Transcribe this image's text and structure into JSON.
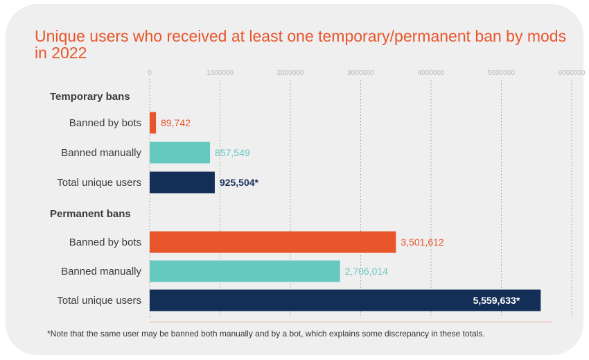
{
  "title": "Unique users who received at least one temporary/permanent ban by mods in 2022",
  "footnote": "*Note that the same user may be banned both manually and by a bot, which explains some discrepancy in these totals.",
  "colors": {
    "bots": "#e8552b",
    "manual": "#66c9c0",
    "total": "#142f57",
    "title": "#e8552b",
    "axis": "#e6b8a8"
  },
  "chart_data": {
    "type": "bar",
    "orientation": "horizontal",
    "title": "Unique users who received at least one temporary/permanent ban by mods in 2022",
    "xlim": [
      0,
      6000000
    ],
    "xticks": [
      "0",
      "1000000",
      "2000000",
      "3000000",
      "4000000",
      "5000000",
      "6000000"
    ],
    "groups": [
      {
        "name": "Temporary bans",
        "bars": [
          {
            "label": "Banned by bots",
            "value": 89742,
            "value_label": "89,742",
            "series": "bots"
          },
          {
            "label": "Banned manually",
            "value": 857549,
            "value_label": "857,549",
            "series": "manual"
          },
          {
            "label": "Total unique users",
            "value": 925504,
            "value_label": "925,504*",
            "series": "total"
          }
        ]
      },
      {
        "name": "Permanent bans",
        "bars": [
          {
            "label": "Banned by bots",
            "value": 3501612,
            "value_label": "3,501,612",
            "series": "bots"
          },
          {
            "label": "Banned manually",
            "value": 2706014,
            "value_label": "2,706,014",
            "series": "manual"
          },
          {
            "label": "Total unique users",
            "value": 5559633,
            "value_label": "5,559,633*",
            "series": "total"
          }
        ]
      }
    ]
  }
}
